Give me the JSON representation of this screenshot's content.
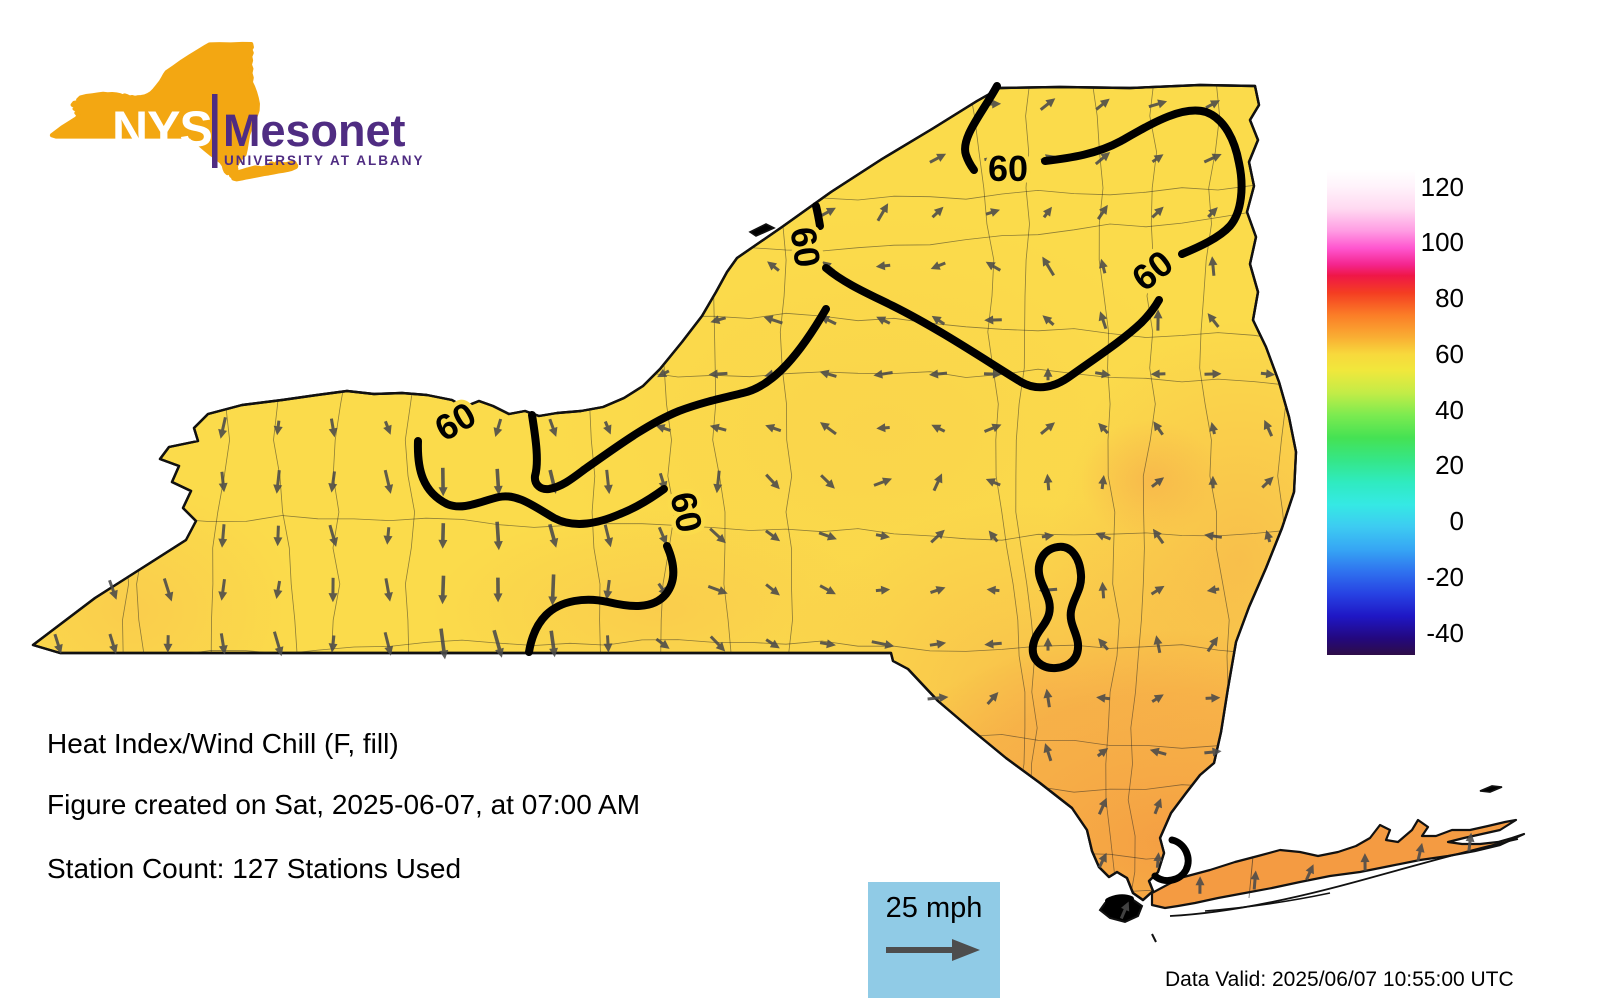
{
  "logo": {
    "acronym": "NYS",
    "name": "Mesonet",
    "subtitle": "UNIVERSITY AT ALBANY",
    "orange": "#F3A712",
    "purple": "#4F2C82"
  },
  "captions": {
    "variable": "Heat Index/Wind Chill (F, fill)",
    "created": "Figure created on Sat, 2025-06-07, at 07:00 AM",
    "stations": "Station Count: 127 Stations Used",
    "data_valid": "Data Valid: 2025/06/07 10:55:00 UTC"
  },
  "wind_legend": {
    "label": "25 mph",
    "box_color": "#90CBE6",
    "arrow_color": "#4D4D4D"
  },
  "map": {
    "contour_label": "60",
    "contour_values": [
      60
    ],
    "contour_color": "#000000",
    "base_fill": "#FBDB4B",
    "warm_fill": "#F49B42",
    "arrow_color": "#4A4A4A",
    "county_line_color": "#222222"
  },
  "colorbar": {
    "ticks": [
      120,
      100,
      80,
      60,
      40,
      20,
      0,
      -20,
      -40
    ],
    "value_max": 126,
    "value_min": -48,
    "stops": [
      {
        "v": 126,
        "c": "#FFFFFF"
      },
      {
        "v": 120,
        "c": "#FFF3FB"
      },
      {
        "v": 112,
        "c": "#FFD9F1"
      },
      {
        "v": 104,
        "c": "#FF9BE3"
      },
      {
        "v": 98,
        "c": "#FF56CF"
      },
      {
        "v": 92,
        "c": "#F4258E"
      },
      {
        "v": 88,
        "c": "#EF1747"
      },
      {
        "v": 82,
        "c": "#F43D22"
      },
      {
        "v": 74,
        "c": "#FB7D27"
      },
      {
        "v": 66,
        "c": "#F9AE33"
      },
      {
        "v": 60,
        "c": "#F8D83C"
      },
      {
        "v": 54,
        "c": "#F0E83C"
      },
      {
        "v": 46,
        "c": "#C2EC47"
      },
      {
        "v": 38,
        "c": "#7BEB50"
      },
      {
        "v": 30,
        "c": "#45E253"
      },
      {
        "v": 22,
        "c": "#35E687"
      },
      {
        "v": 14,
        "c": "#2FEBC0"
      },
      {
        "v": 6,
        "c": "#35E9E4"
      },
      {
        "v": -2,
        "c": "#3DCBF2"
      },
      {
        "v": -10,
        "c": "#36A6F4"
      },
      {
        "v": -18,
        "c": "#2F72EF"
      },
      {
        "v": -26,
        "c": "#2742E3"
      },
      {
        "v": -34,
        "c": "#1F17C5"
      },
      {
        "v": -42,
        "c": "#23087E"
      },
      {
        "v": -48,
        "c": "#2E0D47"
      }
    ]
  }
}
